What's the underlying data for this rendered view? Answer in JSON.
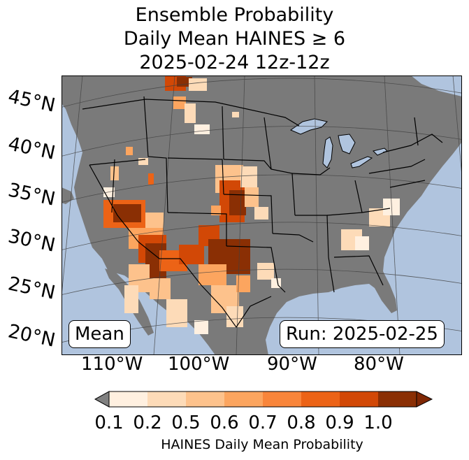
{
  "title": {
    "line1": "Ensemble Probability",
    "line2": "Daily Mean HAINES ≥ 6",
    "line3": "2025-02-24 12z-12z"
  },
  "lat_labels": [
    "45°N",
    "40°N",
    "35°N",
    "30°N",
    "25°N",
    "20°N"
  ],
  "lon_labels": [
    "110°W",
    "100°W",
    "90°W",
    "80°W"
  ],
  "stat_box": "Mean",
  "run_box": "Run: 2025-02-25",
  "colorbar": {
    "ticks": [
      "0.1",
      "0.2",
      "0.5",
      "0.6",
      "0.7",
      "0.8",
      "0.9",
      "1.0"
    ],
    "label": "HAINES Daily Mean Probability",
    "colors": [
      "#fff0e0",
      "#fddbb8",
      "#fdc28c",
      "#fca55f",
      "#f9853a",
      "#ec6316",
      "#d24806",
      "#8a2f04"
    ],
    "under_color": "#808080",
    "over_color": "#7f2704"
  },
  "colors": {
    "ocean": "#b0c4de",
    "land": "#7a7a7a",
    "border": "#000000"
  }
}
